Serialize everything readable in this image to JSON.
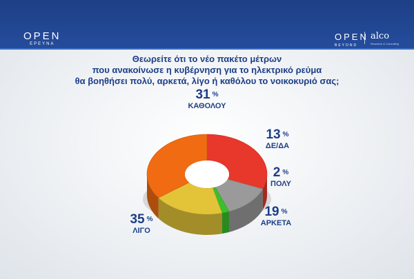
{
  "header": {
    "left_brand": "OPEN",
    "left_brand_sub": "ΕΡΕΥΝΑ",
    "right_brand": "OPEN",
    "right_brand_sub": "BEYOND",
    "partner": "alco",
    "partner_sub": "Research & Consulting"
  },
  "question": {
    "line1": "Θεωρείτε ότι το νέο πακέτο μέτρων",
    "line2": "που ανακοίνωσε η κυβέρνηση για το ηλεκτρικό ρεύμα",
    "line3": "θα βοηθήσει πολύ, αρκετά, λίγο ή καθόλου το νοικοκυριό σας;"
  },
  "chart_data": {
    "type": "pie",
    "style": "3d-donut",
    "title": "Θεωρείτε ότι το νέο πακέτο μέτρων που ανακοίνωσε η κυβέρνηση για το ηλεκτρικό ρεύμα θα βοηθήσει πολύ, αρκετά, λίγο ή καθόλου το νοικοκυριό σας;",
    "unit": "%",
    "slices": [
      {
        "label": "ΚΑΘΟΛΟΥ",
        "value": 31,
        "color": "#e8372b"
      },
      {
        "label": "ΔΕ/ΔΑ",
        "value": 13,
        "color": "#9a9a9a"
      },
      {
        "label": "ΠΟΛΥ",
        "value": 2,
        "color": "#3bbf2c"
      },
      {
        "label": "ΑΡΚΕΤΑ",
        "value": 19,
        "color": "#e3c439"
      },
      {
        "label": "ΛΙΓΟ",
        "value": 35,
        "color": "#f06b12"
      }
    ]
  }
}
